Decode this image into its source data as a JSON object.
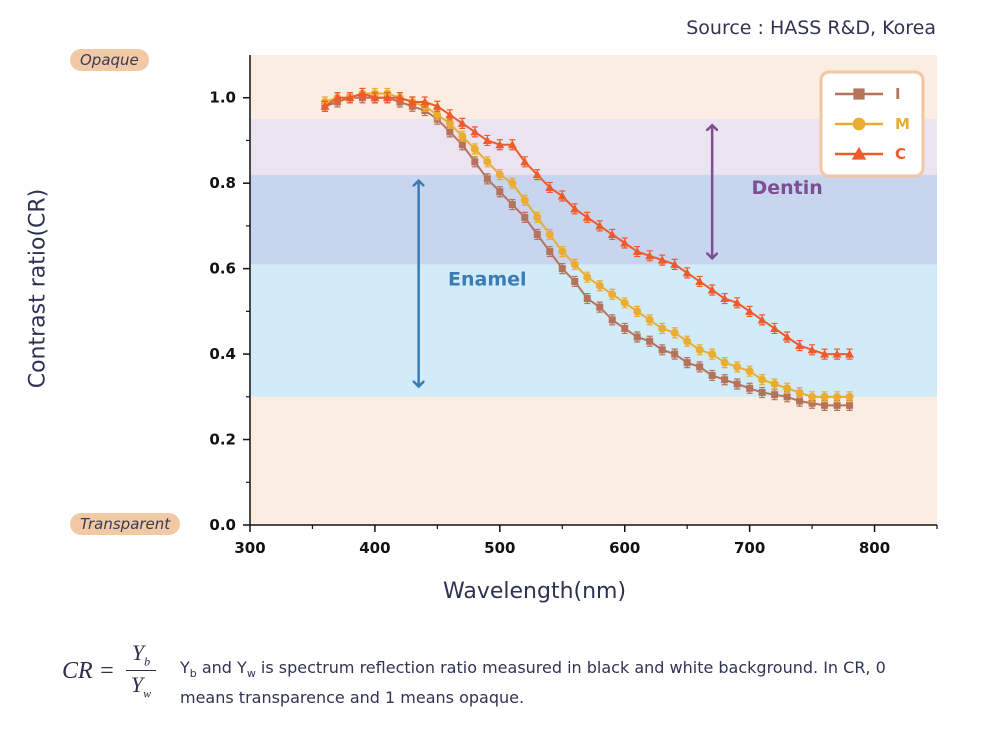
{
  "source": "Source : HASS R&D, Korea",
  "labels": {
    "opaque": "Opaque",
    "transparent": "Transparent"
  },
  "footnote": {
    "formula_lhs": "CR =",
    "numerator": "Y",
    "numerator_sub": "b",
    "denominator": "Y",
    "denominator_sub": "w",
    "y1": "Y",
    "sub1": "b",
    "and": " and ",
    "y2": "Y",
    "sub2": "w",
    "text": " is spectrum reflection ratio measured in black and white background. In CR, 0 means transparence and 1 means opaque."
  },
  "chart_data": {
    "type": "line",
    "xlabel": "Wavelength(nm)",
    "ylabel": "Contrast ratio(CR)",
    "xlim": [
      300,
      850
    ],
    "ylim": [
      0.0,
      1.1
    ],
    "xticks": [
      "300",
      "400",
      "500",
      "600",
      "700",
      "800"
    ],
    "yticks": [
      "0.0",
      "0.2",
      "0.4",
      "0.6",
      "0.8",
      "1.0"
    ],
    "legend_position": "top-right",
    "bands": [
      {
        "name": "Enamel",
        "range": [
          0.3,
          0.61
        ],
        "color": "#d2ebf8"
      },
      {
        "name": "Dentin",
        "range": [
          0.61,
          0.82
        ],
        "color": "#c7d6ee"
      },
      {
        "name": "",
        "range": [
          0.82,
          0.95
        ],
        "color": "#ece3f0"
      }
    ],
    "annotations": [
      {
        "text": "Enamel",
        "arrow_x": 435,
        "from": 0.31,
        "to": 0.82,
        "color": "#3a7cb3",
        "label_x": 490,
        "label_y": 0.56
      },
      {
        "text": "Dentin",
        "arrow_x": 670,
        "from": 0.61,
        "to": 0.95,
        "color": "#7c4f93",
        "label_x": 730,
        "label_y": 0.775
      }
    ],
    "x": [
      360,
      370,
      380,
      390,
      400,
      410,
      420,
      430,
      440,
      450,
      460,
      470,
      480,
      490,
      500,
      510,
      520,
      530,
      540,
      550,
      560,
      570,
      580,
      590,
      600,
      610,
      620,
      630,
      640,
      650,
      660,
      670,
      680,
      690,
      700,
      710,
      720,
      730,
      740,
      750,
      760,
      770,
      780
    ],
    "series": [
      {
        "name": "I",
        "marker": "square",
        "color": "#b5735b",
        "values": [
          0.98,
          0.99,
          1.0,
          1.0,
          1.0,
          1.0,
          0.99,
          0.98,
          0.97,
          0.95,
          0.92,
          0.89,
          0.85,
          0.81,
          0.78,
          0.75,
          0.72,
          0.68,
          0.64,
          0.6,
          0.57,
          0.53,
          0.51,
          0.48,
          0.46,
          0.44,
          0.43,
          0.41,
          0.4,
          0.38,
          0.37,
          0.35,
          0.34,
          0.33,
          0.32,
          0.31,
          0.305,
          0.3,
          0.29,
          0.285,
          0.28,
          0.28,
          0.28
        ]
      },
      {
        "name": "M",
        "marker": "circle",
        "color": "#eaad31",
        "values": [
          0.99,
          1.0,
          1.0,
          1.01,
          1.01,
          1.01,
          1.0,
          0.99,
          0.98,
          0.96,
          0.94,
          0.91,
          0.88,
          0.85,
          0.82,
          0.8,
          0.76,
          0.72,
          0.68,
          0.64,
          0.61,
          0.58,
          0.56,
          0.54,
          0.52,
          0.5,
          0.48,
          0.46,
          0.45,
          0.43,
          0.41,
          0.4,
          0.38,
          0.37,
          0.36,
          0.34,
          0.33,
          0.32,
          0.31,
          0.3,
          0.3,
          0.3,
          0.3
        ]
      },
      {
        "name": "C",
        "marker": "triangle",
        "color": "#ef5a2d",
        "values": [
          0.98,
          1.0,
          1.0,
          1.01,
          1.0,
          1.0,
          1.0,
          0.99,
          0.99,
          0.98,
          0.96,
          0.94,
          0.92,
          0.9,
          0.89,
          0.89,
          0.85,
          0.82,
          0.79,
          0.77,
          0.74,
          0.72,
          0.7,
          0.68,
          0.66,
          0.64,
          0.63,
          0.62,
          0.61,
          0.59,
          0.57,
          0.55,
          0.53,
          0.52,
          0.5,
          0.48,
          0.46,
          0.44,
          0.42,
          0.41,
          0.4,
          0.4,
          0.4
        ]
      }
    ]
  }
}
